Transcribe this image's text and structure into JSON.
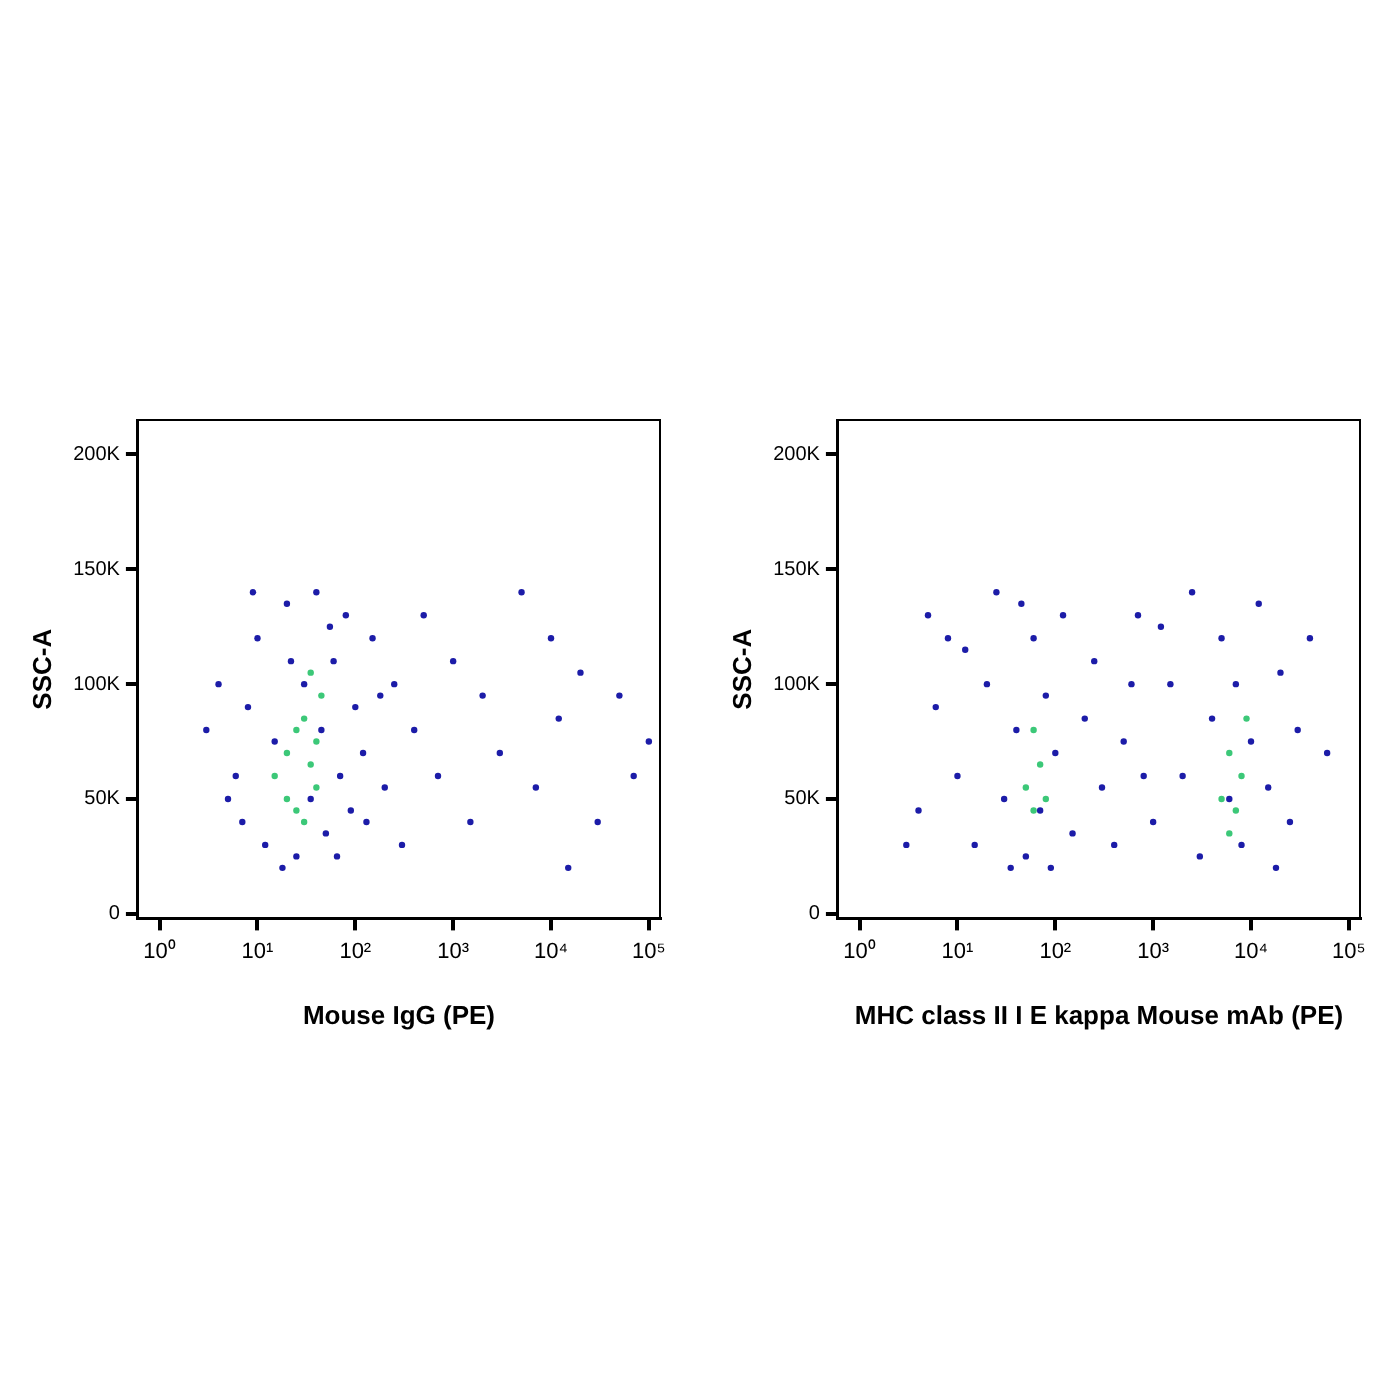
{
  "chart_data": [
    {
      "type": "scatter",
      "xlabel": "Mouse IgG (PE)",
      "ylabel": "SSC-A",
      "log": "x",
      "grid": false,
      "legend": false,
      "marker": "circle",
      "xlim": [
        0.6,
        130000
      ],
      "ylim": [
        -2000,
        215000
      ],
      "xticks": [
        {
          "value": 1,
          "label": "10⁰"
        },
        {
          "value": 10,
          "label": "10¹"
        },
        {
          "value": 100,
          "label": "10²"
        },
        {
          "value": 1000,
          "label": "10³"
        },
        {
          "value": 10000,
          "label": "10⁴"
        },
        {
          "value": 100000,
          "label": "10⁵"
        }
      ],
      "yticks": [
        {
          "value": 0,
          "label": "0"
        },
        {
          "value": 50000,
          "label": "50K"
        },
        {
          "value": 100000,
          "label": "100K"
        },
        {
          "value": 150000,
          "label": "150K"
        },
        {
          "value": 200000,
          "label": "200K"
        }
      ],
      "series": [
        {
          "color": "#1c1ca8",
          "x": [
            6,
            8,
            7,
            10,
            12,
            15,
            20,
            25,
            30,
            35,
            40,
            45,
            50,
            60,
            70,
            80,
            90,
            100,
            120,
            150,
            200,
            250,
            300,
            400,
            500,
            700,
            1000,
            1500,
            2000,
            3000,
            5000,
            7000,
            10000,
            12000,
            15000,
            20000,
            30000,
            50000,
            70000,
            100000,
            4,
            5,
            9,
            18,
            3,
            22,
            55,
            65,
            130,
            180
          ],
          "values": [
            60000,
            90000,
            40000,
            120000,
            30000,
            75000,
            135000,
            25000,
            100000,
            50000,
            140000,
            80000,
            35000,
            110000,
            60000,
            130000,
            45000,
            90000,
            70000,
            120000,
            55000,
            100000,
            30000,
            80000,
            130000,
            60000,
            110000,
            40000,
            95000,
            70000,
            140000,
            55000,
            120000,
            85000,
            20000,
            105000,
            40000,
            95000,
            60000,
            75000,
            100000,
            50000,
            140000,
            20000,
            80000,
            110000,
            125000,
            25000,
            40000,
            95000
          ]
        },
        {
          "color": "#3cc878",
          "x": [
            15,
            20,
            25,
            30,
            35,
            40,
            45,
            25,
            30,
            35,
            20,
            40
          ],
          "values": [
            60000,
            70000,
            45000,
            85000,
            65000,
            55000,
            95000,
            80000,
            40000,
            105000,
            50000,
            75000
          ]
        }
      ]
    },
    {
      "type": "scatter",
      "xlabel": "MHC class II I E kappa Mouse mAb (PE)",
      "ylabel": "SSC-A",
      "log": "x",
      "grid": false,
      "legend": false,
      "marker": "circle",
      "xlim": [
        0.6,
        130000
      ],
      "ylim": [
        -2000,
        215000
      ],
      "xticks": [
        {
          "value": 1,
          "label": "10⁰"
        },
        {
          "value": 10,
          "label": "10¹"
        },
        {
          "value": 100,
          "label": "10²"
        },
        {
          "value": 1000,
          "label": "10³"
        },
        {
          "value": 10000,
          "label": "10⁴"
        },
        {
          "value": 100000,
          "label": "10⁵"
        }
      ],
      "yticks": [
        {
          "value": 0,
          "label": "0"
        },
        {
          "value": 50000,
          "label": "50K"
        },
        {
          "value": 100000,
          "label": "100K"
        },
        {
          "value": 150000,
          "label": "150K"
        },
        {
          "value": 200000,
          "label": "200K"
        }
      ],
      "series": [
        {
          "color": "#1c1ca8",
          "x": [
            4,
            6,
            8,
            10,
            15,
            20,
            25,
            30,
            40,
            50,
            60,
            70,
            80,
            100,
            120,
            150,
            200,
            250,
            300,
            500,
            700,
            1000,
            1500,
            2000,
            2500,
            3000,
            4000,
            5000,
            6000,
            7000,
            8000,
            10000,
            12000,
            15000,
            20000,
            25000,
            30000,
            40000,
            60000,
            3,
            5,
            12,
            35,
            45,
            90,
            400,
            600,
            800,
            1200,
            18000
          ],
          "values": [
            45000,
            90000,
            120000,
            60000,
            30000,
            100000,
            140000,
            50000,
            80000,
            25000,
            120000,
            45000,
            95000,
            70000,
            130000,
            35000,
            85000,
            110000,
            55000,
            75000,
            130000,
            40000,
            100000,
            60000,
            140000,
            25000,
            85000,
            120000,
            50000,
            100000,
            30000,
            75000,
            135000,
            55000,
            105000,
            40000,
            80000,
            120000,
            70000,
            30000,
            130000,
            115000,
            20000,
            135000,
            20000,
            30000,
            100000,
            60000,
            125000,
            20000
          ]
        },
        {
          "color": "#3cc878",
          "x": [
            50,
            60,
            70,
            80,
            60,
            5000,
            6000,
            7000,
            8000,
            9000,
            6000
          ],
          "values": [
            55000,
            45000,
            65000,
            50000,
            80000,
            50000,
            70000,
            45000,
            60000,
            85000,
            35000
          ]
        }
      ]
    }
  ]
}
